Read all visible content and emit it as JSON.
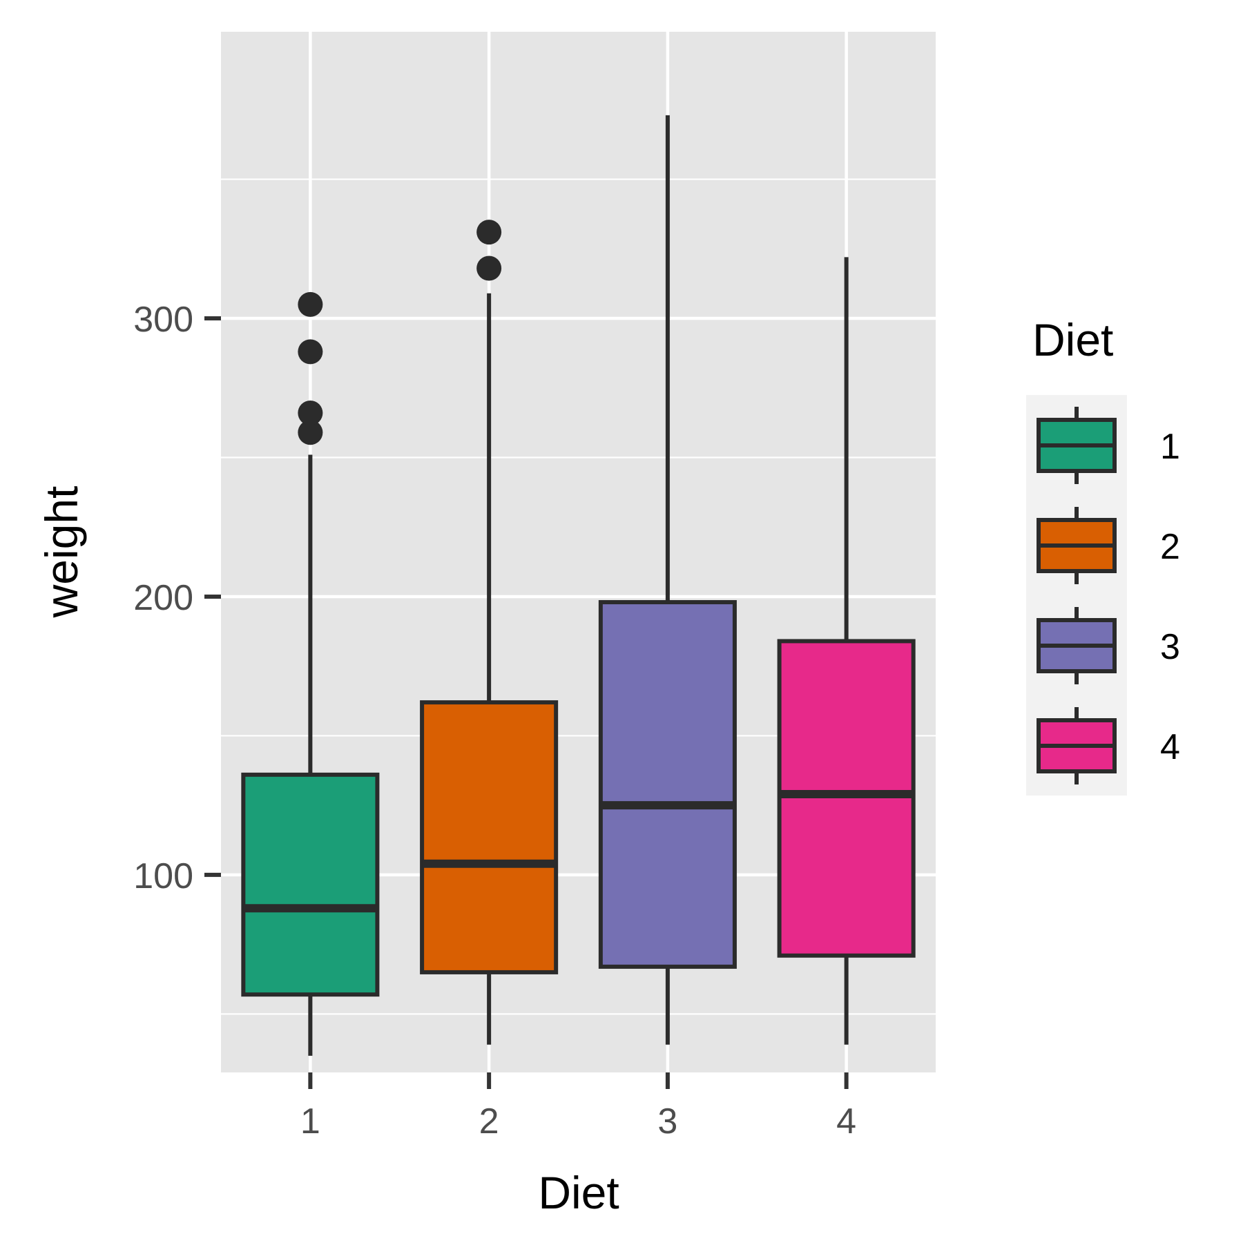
{
  "chart_data": {
    "type": "boxplot",
    "xlabel": "Diet",
    "ylabel": "weight",
    "ylim": [
      29,
      403
    ],
    "yticks": [
      100,
      200,
      300
    ],
    "ytick_labels": [
      "100",
      "200",
      "300"
    ],
    "ygrid_minor": [
      50,
      150,
      250,
      350
    ],
    "grid": true,
    "categories": [
      "1",
      "2",
      "3",
      "4"
    ],
    "boxes": [
      {
        "category": "1",
        "whisker_low": 35,
        "q1": 57,
        "median": 88,
        "q3": 136,
        "whisker_high": 251,
        "outliers": [
          259,
          266,
          288,
          305
        ]
      },
      {
        "category": "2",
        "whisker_low": 39,
        "q1": 65,
        "median": 104,
        "q3": 162,
        "whisker_high": 309,
        "outliers": [
          318,
          331
        ]
      },
      {
        "category": "3",
        "whisker_low": 39,
        "q1": 67,
        "median": 125,
        "q3": 198,
        "whisker_high": 373,
        "outliers": []
      },
      {
        "category": "4",
        "whisker_low": 39,
        "q1": 71,
        "median": 129,
        "q3": 184,
        "whisker_high": 322,
        "outliers": []
      }
    ],
    "colors": [
      "#1B9E77",
      "#D95F02",
      "#7570B3",
      "#E7298A"
    ],
    "legend": {
      "title": "Diet",
      "position": "right",
      "labels": [
        "1",
        "2",
        "3",
        "4"
      ]
    }
  }
}
